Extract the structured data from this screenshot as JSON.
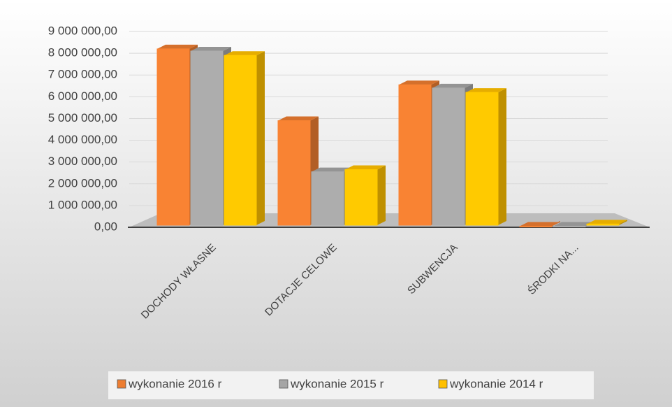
{
  "chart_data": {
    "type": "bar",
    "categories": [
      "DOCHODY WŁASNE",
      "DOTACJE CELOWE",
      "SUBWENCJA",
      "ŚRODKI NA..."
    ],
    "series": [
      {
        "name": "wykonanie 2016 r",
        "color": "#ED7D31",
        "values": [
          8200000,
          4900000,
          6550000,
          50000
        ]
      },
      {
        "name": "wykonanie 2015 r",
        "color": "#A5A5A5",
        "values": [
          8100000,
          2550000,
          6400000,
          50000
        ]
      },
      {
        "name": "wykonanie 2014 r",
        "color": "#FFC000",
        "values": [
          7900000,
          2650000,
          6200000,
          150000
        ]
      }
    ],
    "ylim": [
      0,
      9000000
    ],
    "yticks": [
      {
        "value": 0,
        "label": "0,00"
      },
      {
        "value": 1000000,
        "label": "1 000 000,00"
      },
      {
        "value": 2000000,
        "label": "2 000 000,00"
      },
      {
        "value": 3000000,
        "label": "3 000 000,00"
      },
      {
        "value": 4000000,
        "label": "4 000 000,00"
      },
      {
        "value": 5000000,
        "label": "5 000 000,00"
      },
      {
        "value": 6000000,
        "label": "6 000 000,00"
      },
      {
        "value": 7000000,
        "label": "7 000 000,00"
      },
      {
        "value": 8000000,
        "label": "8 000 000,00"
      },
      {
        "value": 9000000,
        "label": "9 000 000,00"
      }
    ],
    "grid": true
  }
}
